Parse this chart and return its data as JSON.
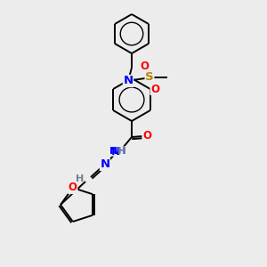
{
  "background_color": "#ececec",
  "atom_colors": {
    "C": "#000000",
    "H": "#708090",
    "N": "#0000FF",
    "O": "#FF0000",
    "S": "#B8860B"
  },
  "bond_color": "#000000",
  "figsize": [
    3.0,
    3.0
  ],
  "dpi": 100,
  "bond_lw": 1.4,
  "ring_lw": 1.4,
  "font_size_atom": 8.5,
  "font_size_H": 7.5
}
